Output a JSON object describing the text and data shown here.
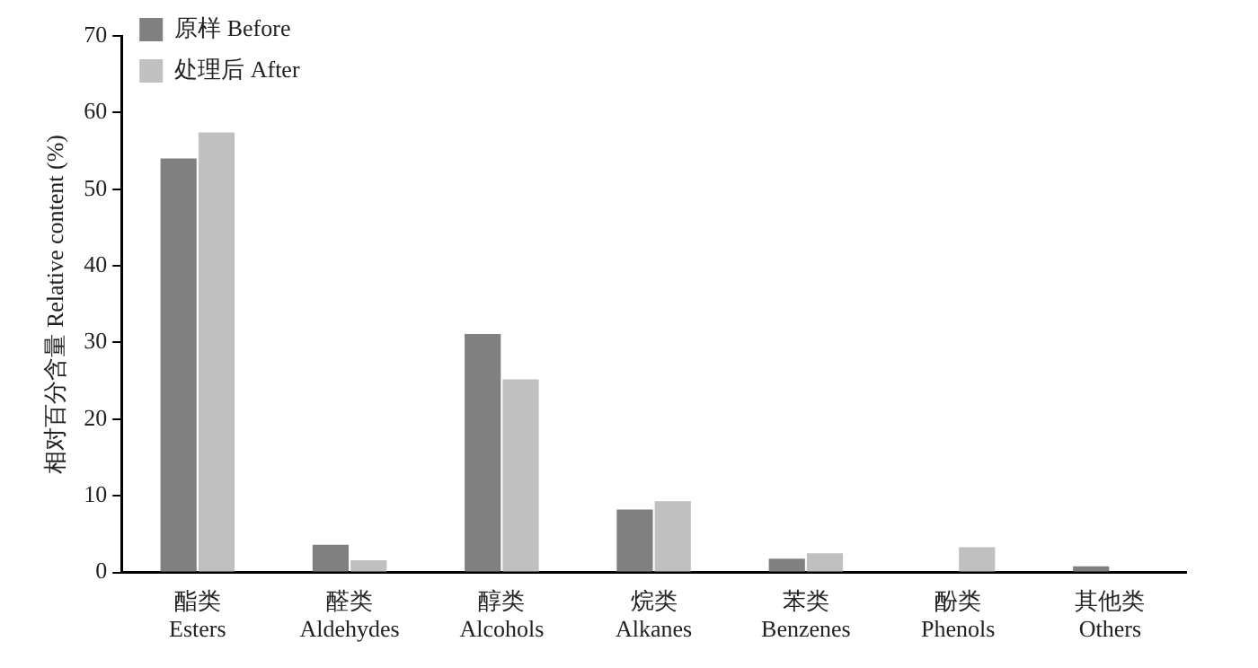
{
  "chart_data": {
    "type": "bar",
    "ylabel": "相对百分含量 Relative content (%)",
    "categories": [
      "酯类\nEsters",
      "醛类\nAldehydes",
      "醇类\nAlcohols",
      "烷类\nAlkanes",
      "苯类\nBenzenes",
      "酚类\nPhenols",
      "其他类\nOthers"
    ],
    "series": [
      {
        "name": "原样 Before",
        "color": "#808080",
        "values": [
          54.0,
          3.6,
          31.1,
          8.2,
          1.8,
          null,
          0.8
        ]
      },
      {
        "name": "处理后 After",
        "color": "#c0c0c0",
        "values": [
          57.4,
          1.6,
          25.2,
          9.3,
          2.5,
          3.3,
          null
        ]
      }
    ],
    "ylim": [
      0,
      70
    ],
    "yticks": [
      0,
      10,
      20,
      30,
      40,
      50,
      60,
      70
    ],
    "grid": false,
    "legend": "top left"
  }
}
